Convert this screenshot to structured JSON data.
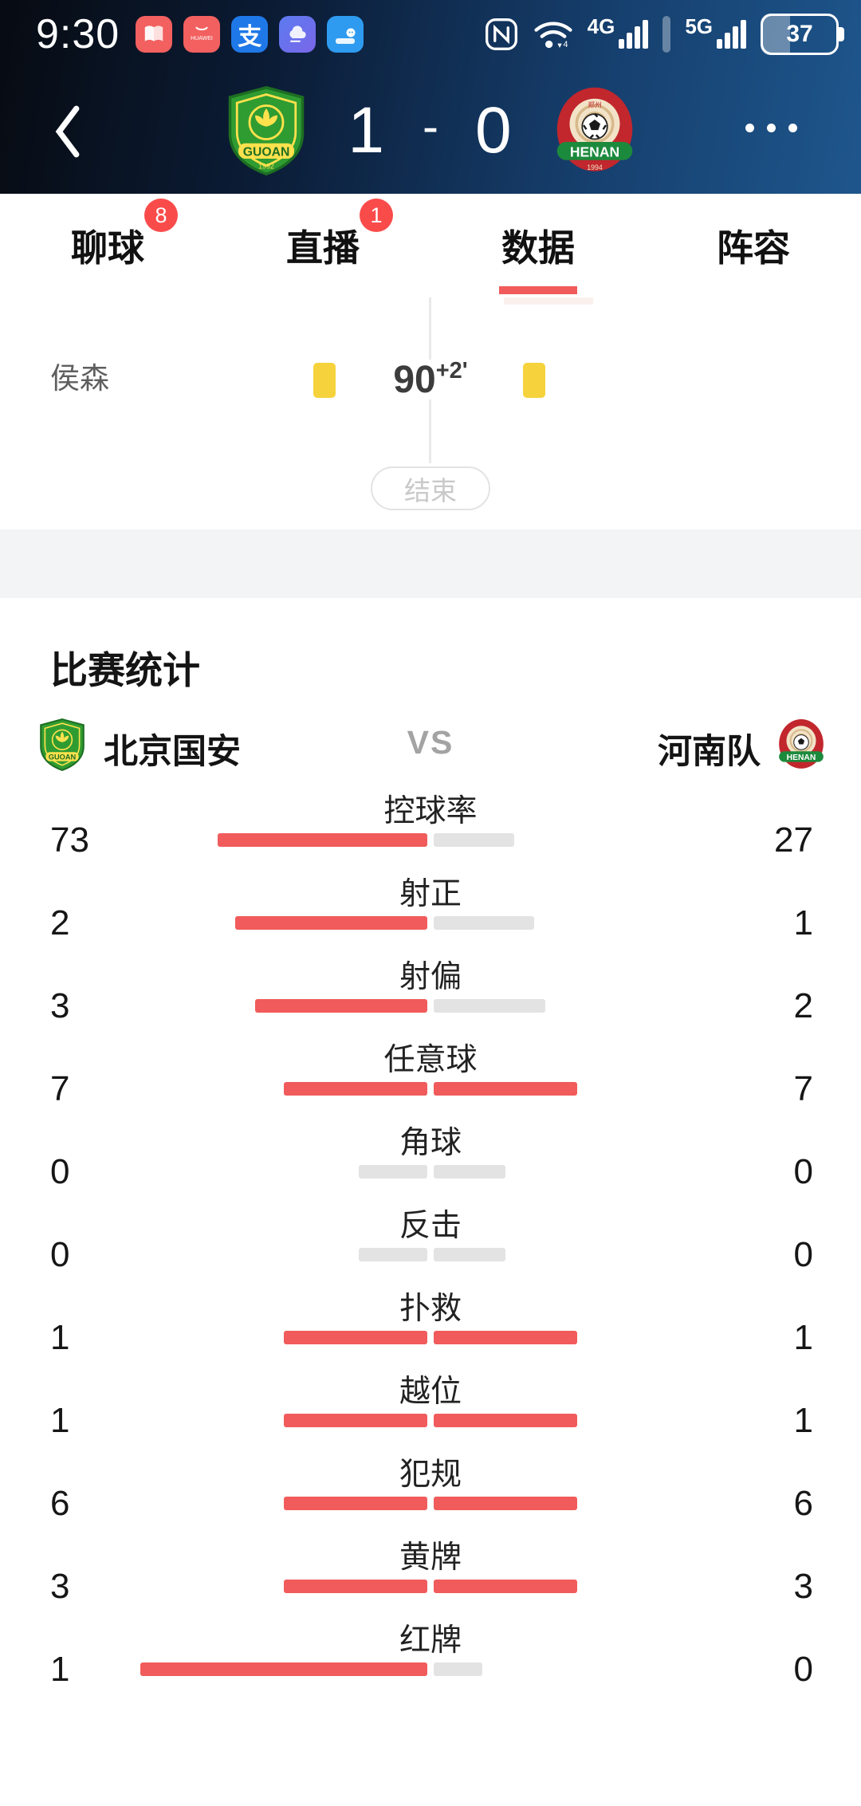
{
  "theme": {
    "accent_red": "#f15b5b",
    "badge_red": "#fa4b4b",
    "bar_gray": "#e3e3e3",
    "yellow_card": "#f6d33c",
    "header_gradient_start": "#070b12",
    "header_gradient_end": "#1e568c"
  },
  "status_bar": {
    "time": "9:30",
    "app_icons": [
      "reading-app",
      "huawei-app",
      "alipay-app",
      "weather-app",
      "messenger-app"
    ],
    "huawei_label": "HUAWEI",
    "alipay_glyph": "支",
    "sim1_label": "4G",
    "sim2_label": "5G",
    "battery_percent": "37"
  },
  "header": {
    "home_team": "北京国安",
    "away_team": "河南队",
    "home_score": "1",
    "score_separator": "-",
    "away_score": "0",
    "home_logo_text": "GUOAN",
    "away_logo_text": "HENAN"
  },
  "tabs": [
    {
      "label": "聊球",
      "badge": "8",
      "active": false
    },
    {
      "label": "直播",
      "badge": "1",
      "active": false
    },
    {
      "label": "数据",
      "badge": null,
      "active": true
    },
    {
      "label": "阵容",
      "badge": null,
      "active": false
    }
  ],
  "timeline": {
    "events": [
      {
        "player": "侯森",
        "minute": "90",
        "extra": "+2'",
        "home_card": "yellow",
        "away_card": "yellow"
      }
    ],
    "status_label": "结束"
  },
  "stats_section": {
    "title": "比赛统计",
    "home_team": "北京国安",
    "away_team": "河南队",
    "vs_label": "VS",
    "stats": [
      {
        "label": "控球率",
        "home": "73",
        "away": "27",
        "home_pct": 73,
        "away_pct": 28,
        "home_color": "red",
        "away_color": "gray"
      },
      {
        "label": "射正",
        "home": "2",
        "away": "1",
        "home_pct": 67,
        "away_pct": 35,
        "home_color": "red",
        "away_color": "gray"
      },
      {
        "label": "射偏",
        "home": "3",
        "away": "2",
        "home_pct": 60,
        "away_pct": 39,
        "home_color": "red",
        "away_color": "gray"
      },
      {
        "label": "任意球",
        "home": "7",
        "away": "7",
        "home_pct": 50,
        "away_pct": 50,
        "home_color": "red",
        "away_color": "red"
      },
      {
        "label": "角球",
        "home": "0",
        "away": "0",
        "home_pct": 24,
        "away_pct": 25,
        "home_color": "gray",
        "away_color": "gray"
      },
      {
        "label": "反击",
        "home": "0",
        "away": "0",
        "home_pct": 24,
        "away_pct": 25,
        "home_color": "gray",
        "away_color": "gray"
      },
      {
        "label": "扑救",
        "home": "1",
        "away": "1",
        "home_pct": 50,
        "away_pct": 50,
        "home_color": "red",
        "away_color": "red"
      },
      {
        "label": "越位",
        "home": "1",
        "away": "1",
        "home_pct": 50,
        "away_pct": 50,
        "home_color": "red",
        "away_color": "red"
      },
      {
        "label": "犯规",
        "home": "6",
        "away": "6",
        "home_pct": 50,
        "away_pct": 50,
        "home_color": "red",
        "away_color": "red"
      },
      {
        "label": "黄牌",
        "home": "3",
        "away": "3",
        "home_pct": 50,
        "away_pct": 50,
        "home_color": "red",
        "away_color": "red"
      },
      {
        "label": "红牌",
        "home": "1",
        "away": "0",
        "home_pct": 100,
        "away_pct": 17,
        "home_color": "red",
        "away_color": "gray"
      }
    ]
  }
}
